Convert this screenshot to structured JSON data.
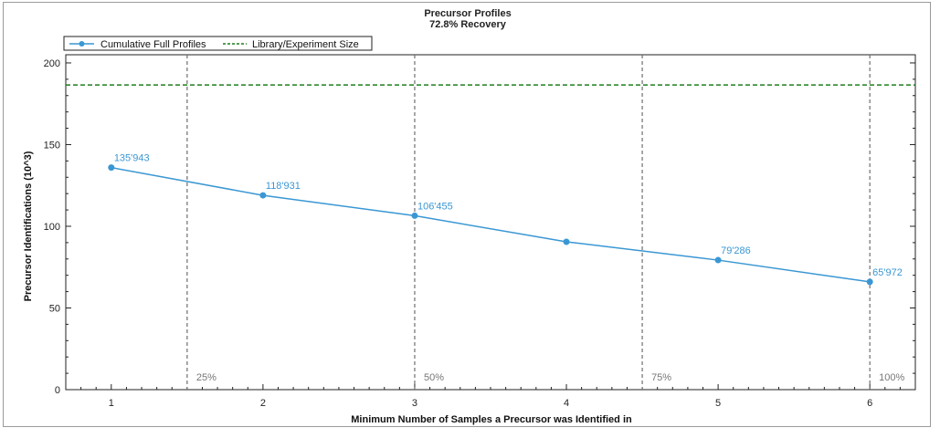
{
  "chart_data": {
    "type": "line",
    "title": "Precursor Profiles",
    "subtitle": "72.8% Recovery",
    "xlabel": "Minimum Number of Samples a Precursor was Identified in",
    "ylabel": "Precursor Identifications (10^3)",
    "x": [
      1,
      2,
      3,
      4,
      5,
      6
    ],
    "x_tick_labels": [
      "1",
      "2",
      "3",
      "4",
      "5",
      "6"
    ],
    "xlim": [
      0.7,
      6.3
    ],
    "ylim": [
      0,
      205
    ],
    "y_ticks": [
      0,
      50,
      100,
      150,
      200
    ],
    "y_tick_labels": [
      "0",
      "50",
      "100",
      "150",
      "200"
    ],
    "grid": false,
    "legend_position": "top-left",
    "series": [
      {
        "name": "Cumulative Full Profiles",
        "color": "#3a97d3",
        "values": [
          135.943,
          118.931,
          106.455,
          90.5,
          79.286,
          65.972
        ],
        "data_labels": [
          "135'943",
          "118'931",
          "106'455",
          "",
          "79'286",
          "65'972"
        ]
      }
    ],
    "reference_lines": [
      {
        "name": "Library/Experiment Size",
        "orientation": "horizontal",
        "value": 186.5,
        "color": "#1e7d1e",
        "style": "dashed"
      }
    ],
    "percentile_lines": [
      {
        "x": 1.5,
        "label": "25%"
      },
      {
        "x": 3,
        "label": "50%"
      },
      {
        "x": 4.5,
        "label": "75%"
      },
      {
        "x": 6,
        "label": "100%"
      }
    ],
    "percentile_line_color": "#6e6e6e"
  }
}
